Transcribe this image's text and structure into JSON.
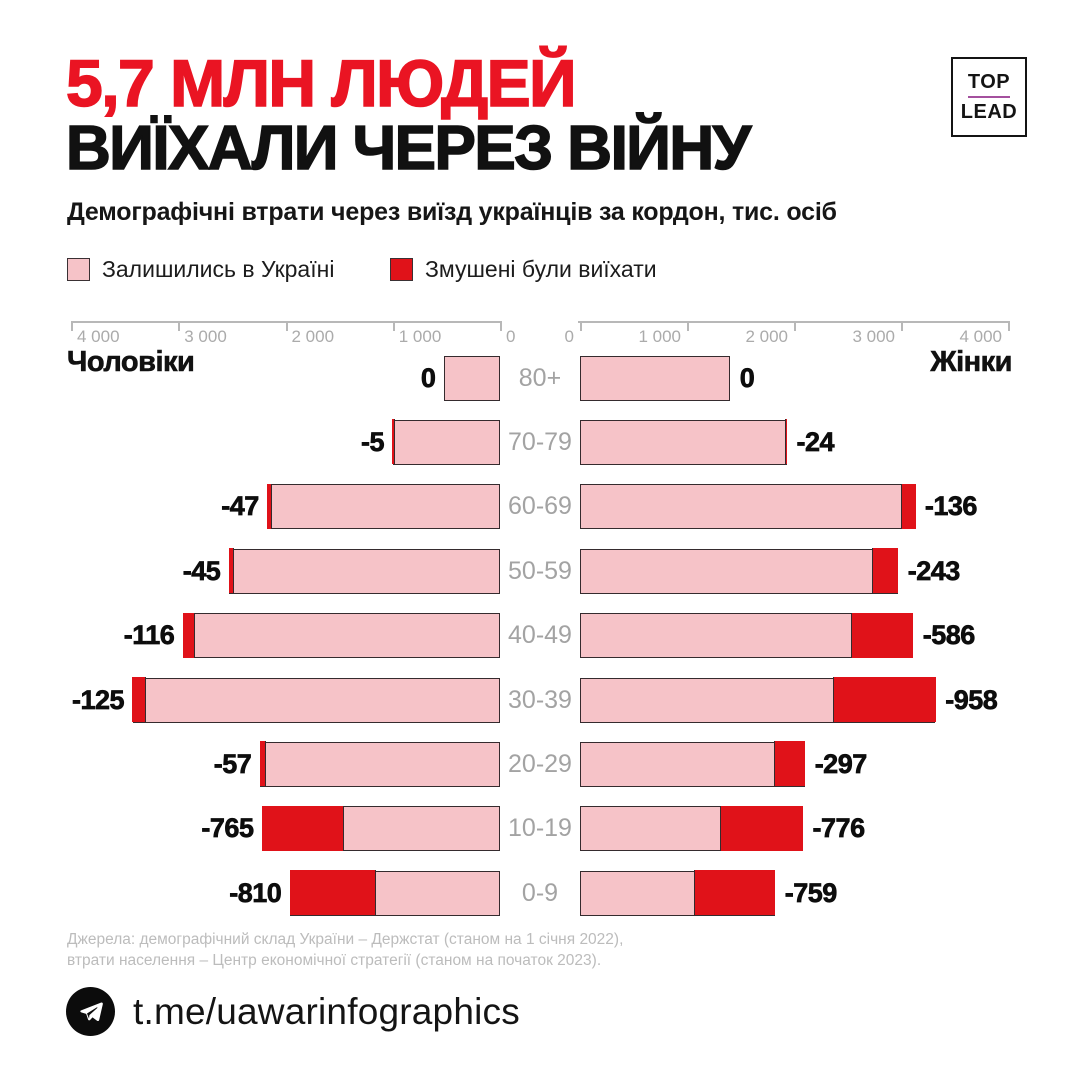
{
  "header": {
    "title_line1": "5,7 МЛН ЛЮДЕЙ",
    "title_line2": "ВИЇХАЛИ ЧЕРЕЗ ВІЙНУ",
    "subtitle": "Демографічні втрати через виїзд українців за кордон, тис. осіб",
    "logo": {
      "top": "TOP",
      "bottom": "LEAD"
    }
  },
  "legend": {
    "remained": "Залишились в Україні",
    "departed": "Змушені були виїхати"
  },
  "chart_data": {
    "type": "bar",
    "subtype": "population-pyramid",
    "title": "Демографічні втрати через виїзд українців за кордон",
    "unit": "тис. осіб",
    "left_group_label": "Чоловіки",
    "right_group_label": "Жінки",
    "legend": [
      "Залишились в Україні",
      "Змушені були виїхати"
    ],
    "axis": {
      "max": 4000,
      "tick_step": 1000,
      "left_tick_labels": [
        "4 000",
        "3 000",
        "2 000",
        "1 000",
        "0"
      ],
      "right_tick_labels": [
        "0",
        "1 000",
        "2 000",
        "3 000",
        "4 000"
      ]
    },
    "age_groups": [
      "80+",
      "70-79",
      "60-69",
      "50-59",
      "40-49",
      "30-39",
      "20-29",
      "10-19",
      "0-9"
    ],
    "rows": [
      {
        "age": "80+",
        "men_total_est": 520,
        "men_departed": 0,
        "men_value_label": "0",
        "women_total_est": 1400,
        "women_departed": 0,
        "women_value_label": "0"
      },
      {
        "age": "70-79",
        "men_total_est": 1000,
        "men_departed": 5,
        "men_value_label": "-5",
        "women_total_est": 1930,
        "women_departed": 24,
        "women_value_label": "-24"
      },
      {
        "age": "60-69",
        "men_total_est": 2170,
        "men_departed": 47,
        "men_value_label": "-47",
        "women_total_est": 3130,
        "women_departed": 136,
        "women_value_label": "-136"
      },
      {
        "age": "50-59",
        "men_total_est": 2530,
        "men_departed": 45,
        "men_value_label": "-45",
        "women_total_est": 2970,
        "women_departed": 243,
        "women_value_label": "-243"
      },
      {
        "age": "40-49",
        "men_total_est": 2960,
        "men_departed": 116,
        "men_value_label": "-116",
        "women_total_est": 3110,
        "women_departed": 586,
        "women_value_label": "-586"
      },
      {
        "age": "30-39",
        "men_total_est": 3430,
        "men_departed": 125,
        "men_value_label": "-125",
        "women_total_est": 3320,
        "women_departed": 958,
        "women_value_label": "-958"
      },
      {
        "age": "20-29",
        "men_total_est": 2240,
        "men_departed": 57,
        "men_value_label": "-57",
        "women_total_est": 2100,
        "women_departed": 297,
        "women_value_label": "-297"
      },
      {
        "age": "10-19",
        "men_total_est": 2220,
        "men_departed": 765,
        "men_value_label": "-765",
        "women_total_est": 2080,
        "women_departed": 776,
        "women_value_label": "-776"
      },
      {
        "age": "0-9",
        "men_total_est": 1960,
        "men_departed": 810,
        "men_value_label": "-810",
        "women_total_est": 1820,
        "women_departed": 759,
        "women_value_label": "-759"
      }
    ]
  },
  "source": {
    "line1": "Джерела: демографічний склад України – Держстат (станом на 1 січня 2022),",
    "line2": "втрати населення – Центр економічної стратегії (станом на початок 2023)."
  },
  "footer": {
    "link": "t.me/uawarinfographics"
  },
  "colors": {
    "title_red": "#ea1423",
    "red": "#e01219",
    "pink": "#f6c3c8",
    "axis_gray": "#b8b8b8",
    "axis_text": "#ababab",
    "age_gray": "#a3a3a3",
    "source_gray": "#bcbcbc",
    "logo_purple": "#a4509e"
  }
}
